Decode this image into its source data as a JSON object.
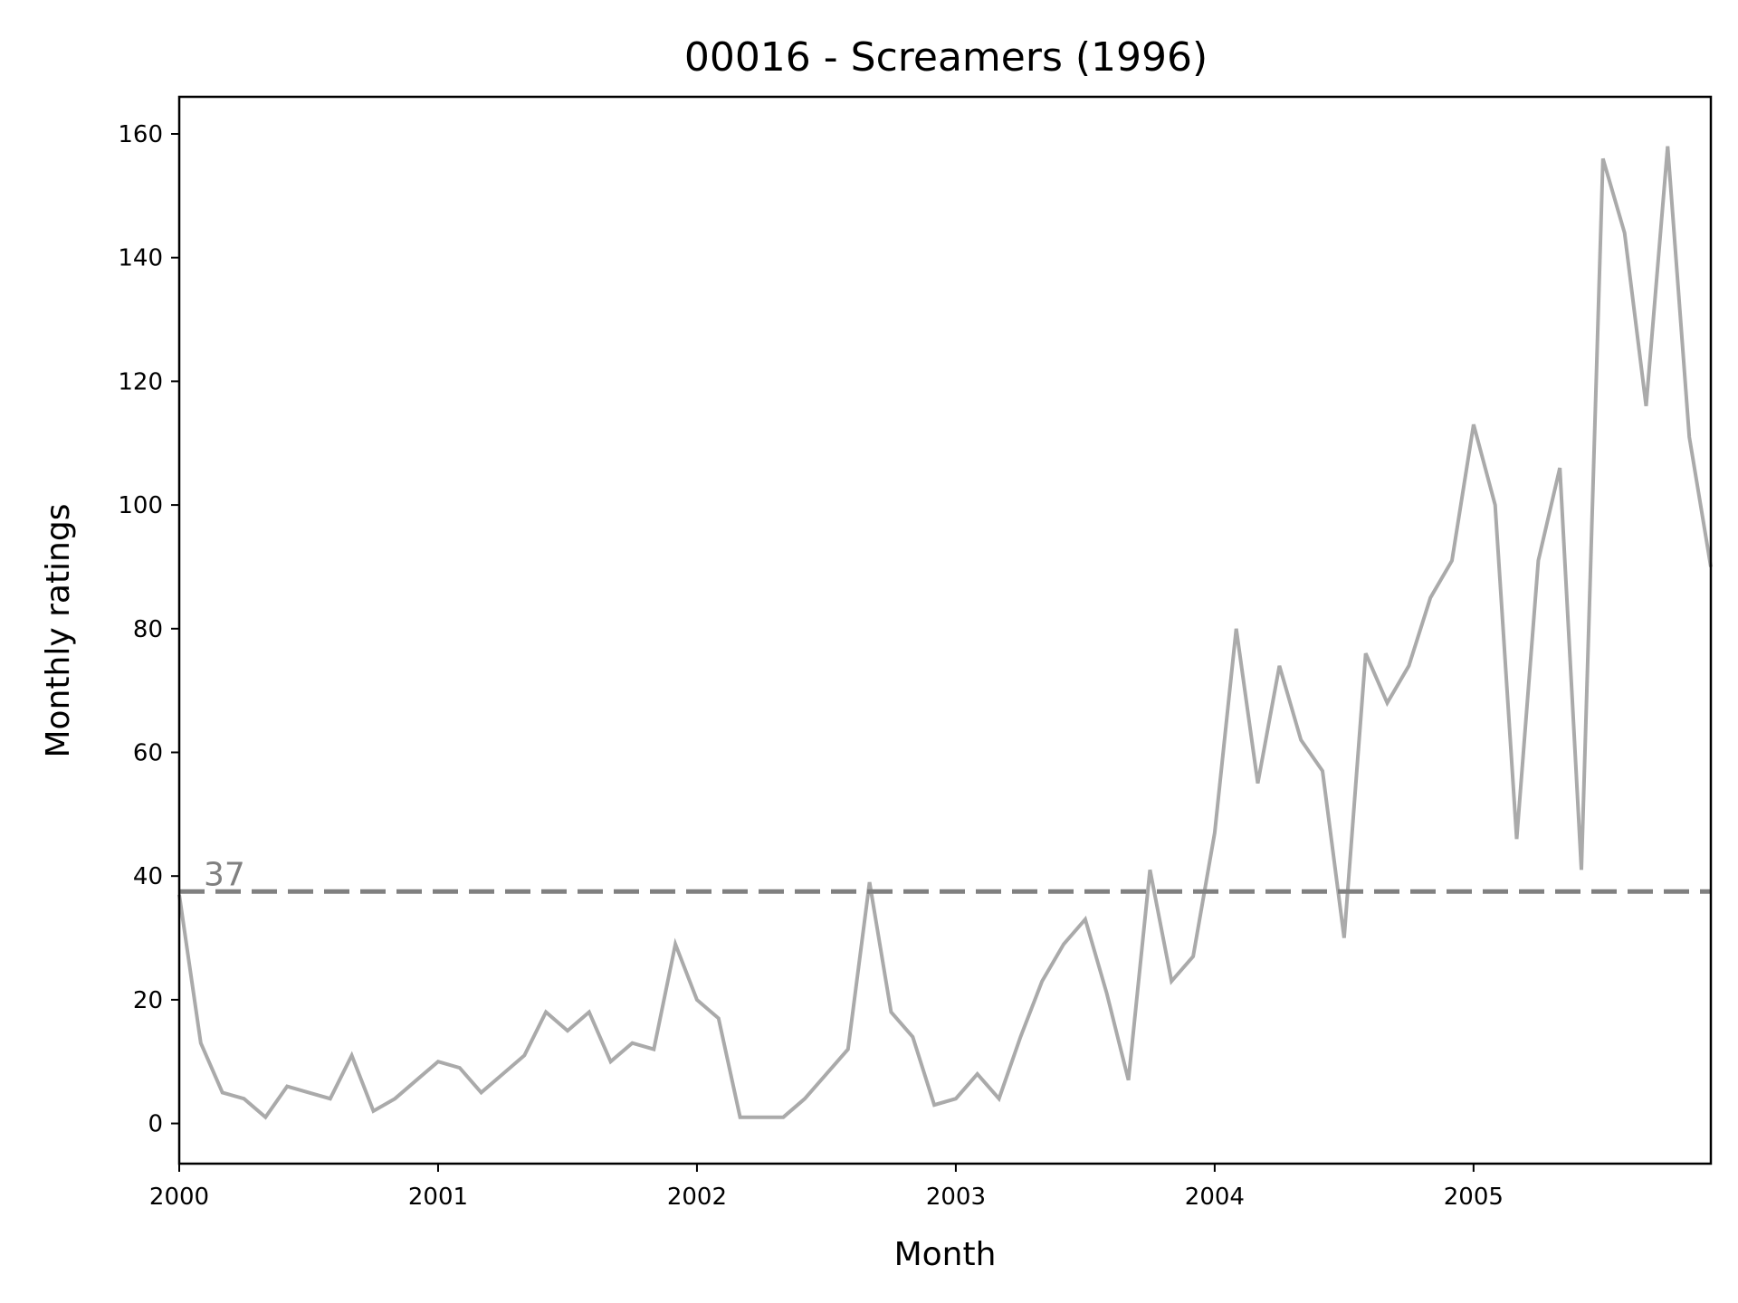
{
  "chart_data": {
    "type": "line",
    "title": "00016 - Screamers (1996)",
    "xlabel": "Month",
    "ylabel": "Monthly ratings",
    "x_start": "2000-01",
    "x_end": "2005-12",
    "xticks": [
      "2000",
      "2001",
      "2002",
      "2003",
      "2004",
      "2005"
    ],
    "yticks": [
      0,
      20,
      40,
      60,
      80,
      100,
      120,
      140,
      160
    ],
    "ylim": [
      -6.5,
      166
    ],
    "grid": false,
    "series": [
      {
        "color": "#aaaaaa",
        "x": [
          "2000-01",
          "2000-02",
          "2000-03",
          "2000-04",
          "2000-05",
          "2000-06",
          "2000-07",
          "2000-08",
          "2000-09",
          "2000-10",
          "2000-11",
          "2000-12",
          "2001-01",
          "2001-02",
          "2001-03",
          "2001-04",
          "2001-05",
          "2001-06",
          "2001-07",
          "2001-08",
          "2001-09",
          "2001-10",
          "2001-11",
          "2001-12",
          "2002-01",
          "2002-02",
          "2002-03",
          "2002-04",
          "2002-05",
          "2002-06",
          "2002-07",
          "2002-08",
          "2002-09",
          "2002-10",
          "2002-11",
          "2002-12",
          "2003-01",
          "2003-02",
          "2003-03",
          "2003-04",
          "2003-05",
          "2003-06",
          "2003-07",
          "2003-08",
          "2003-09",
          "2003-10",
          "2003-11",
          "2003-12",
          "2004-01",
          "2004-02",
          "2004-03",
          "2004-04",
          "2004-05",
          "2004-06",
          "2004-07",
          "2004-08",
          "2004-09",
          "2004-10",
          "2004-11",
          "2004-12",
          "2005-01",
          "2005-02",
          "2005-03",
          "2005-04",
          "2005-05",
          "2005-06",
          "2005-07",
          "2005-08",
          "2005-09",
          "2005-10",
          "2005-11",
          "2005-12"
        ],
        "values": [
          37,
          13,
          5,
          4,
          1,
          6,
          5,
          4,
          11,
          2,
          4,
          7,
          10,
          9,
          5,
          8,
          11,
          18,
          15,
          18,
          10,
          13,
          12,
          29,
          20,
          17,
          1,
          1,
          1,
          4,
          8,
          12,
          39,
          18,
          14,
          3,
          4,
          8,
          4,
          14,
          23,
          29,
          33,
          21,
          7,
          41,
          23,
          27,
          47,
          80,
          55,
          74,
          62,
          57,
          30,
          76,
          68,
          74,
          85,
          91,
          113,
          100,
          46,
          91,
          106,
          41,
          156,
          144,
          116,
          158,
          111,
          90
        ]
      }
    ],
    "reference_line": {
      "value": 37.5,
      "label": "37",
      "color": "#808080",
      "style": "dashed"
    }
  }
}
